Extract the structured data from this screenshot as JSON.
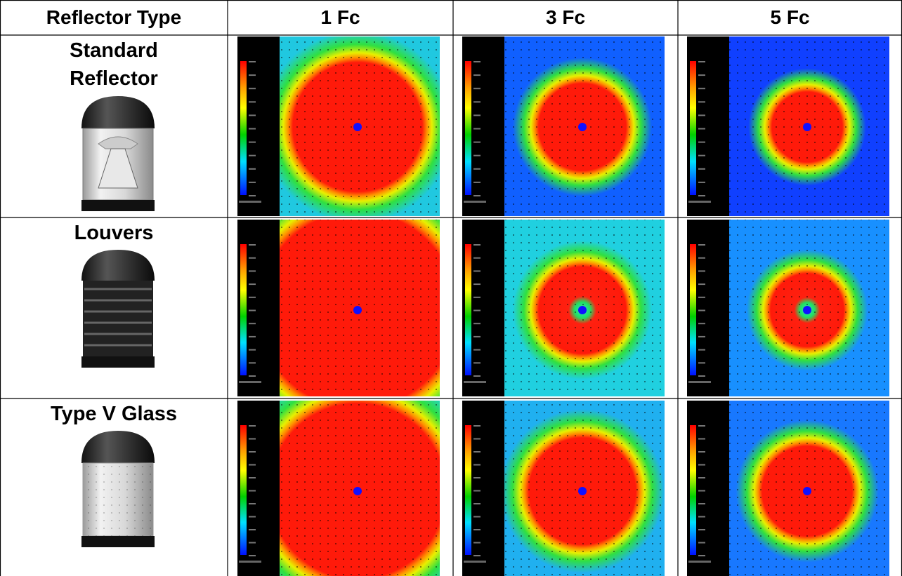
{
  "table": {
    "header": [
      "Reflector  Type",
      "1 Fc",
      "3 Fc",
      "5 Fc"
    ],
    "rows": [
      {
        "label": "Standard Reflector"
      },
      {
        "label": "Louvers"
      },
      {
        "label": "Type V Glass"
      }
    ]
  }
}
